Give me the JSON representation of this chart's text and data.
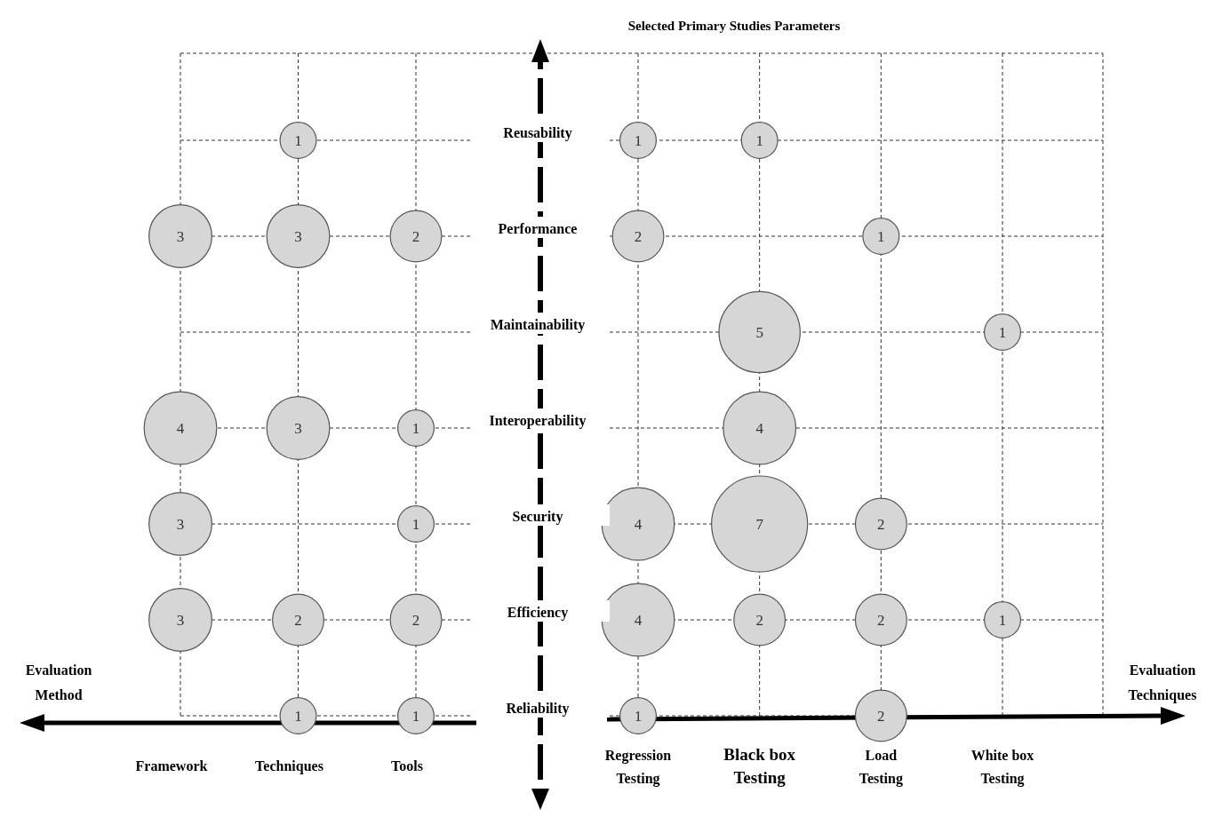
{
  "chart_data": {
    "type": "heatmap",
    "title": "Selected Primary Studies Parameters",
    "categories": [
      "Framework",
      "Techniques",
      "Tools",
      "Regression Testing",
      "Black box Testing",
      "Load Testing",
      "White box Testing"
    ],
    "y_categories": [
      "Reusability",
      "Performance",
      "Maintainability",
      "Interoperability",
      "Security",
      "Efficiency",
      "Reliability"
    ],
    "cells": [
      [
        null,
        1,
        null,
        1,
        1,
        null,
        null
      ],
      [
        3,
        3,
        2,
        2,
        null,
        1,
        null
      ],
      [
        null,
        null,
        null,
        null,
        5,
        null,
        1
      ],
      [
        4,
        3,
        1,
        null,
        4,
        null,
        null
      ],
      [
        3,
        null,
        1,
        4,
        7,
        2,
        null
      ],
      [
        3,
        2,
        2,
        4,
        2,
        2,
        1
      ],
      [
        null,
        1,
        1,
        1,
        null,
        2,
        null
      ]
    ],
    "annotations": [
      "Evaluation Method",
      "Evaluation Techniques"
    ],
    "data_labels": true,
    "grid": true
  }
}
